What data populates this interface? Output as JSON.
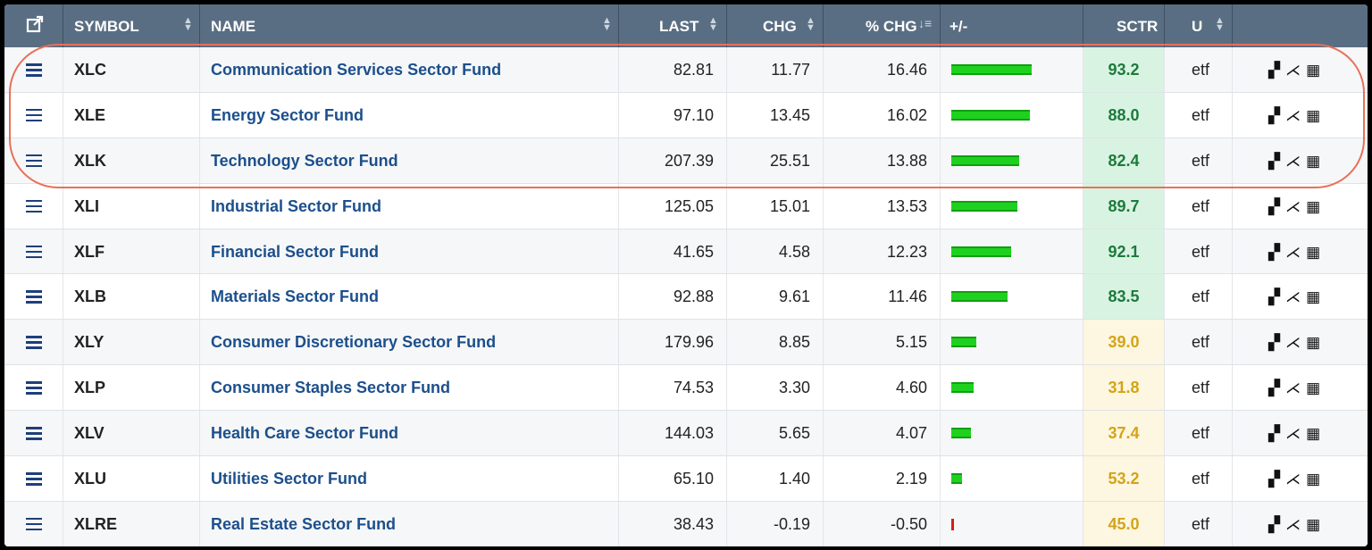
{
  "header": {
    "popout_icon": "external-link-icon",
    "columns": [
      "SYMBOL",
      "NAME",
      "LAST",
      "CHG",
      "% CHG",
      "+/-",
      "SCTR",
      "U"
    ]
  },
  "colors": {
    "sctr_high_bg": "#d9f3e2",
    "sctr_high_text": "#1d7a3c",
    "sctr_mid_bg": "#fdf6e0",
    "sctr_mid_text": "#d3a417",
    "bar_up": "#1fd11f",
    "bar_down": "#d81b1b",
    "highlight": "#e8705a"
  },
  "rows": [
    {
      "symbol": "XLC",
      "name": "Communication Services Sector Fund",
      "last": "82.81",
      "chg": "11.77",
      "pct": "16.46",
      "sctr": "93.2",
      "u": "etf",
      "bar": 16.46
    },
    {
      "symbol": "XLE",
      "name": "Energy Sector Fund",
      "last": "97.10",
      "chg": "13.45",
      "pct": "16.02",
      "sctr": "88.0",
      "u": "etf",
      "bar": 16.02
    },
    {
      "symbol": "XLK",
      "name": "Technology Sector Fund",
      "last": "207.39",
      "chg": "25.51",
      "pct": "13.88",
      "sctr": "82.4",
      "u": "etf",
      "bar": 13.88
    },
    {
      "symbol": "XLI",
      "name": "Industrial Sector Fund",
      "last": "125.05",
      "chg": "15.01",
      "pct": "13.53",
      "sctr": "89.7",
      "u": "etf",
      "bar": 13.53
    },
    {
      "symbol": "XLF",
      "name": "Financial Sector Fund",
      "last": "41.65",
      "chg": "4.58",
      "pct": "12.23",
      "sctr": "92.1",
      "u": "etf",
      "bar": 12.23
    },
    {
      "symbol": "XLB",
      "name": "Materials Sector Fund",
      "last": "92.88",
      "chg": "9.61",
      "pct": "11.46",
      "sctr": "83.5",
      "u": "etf",
      "bar": 11.46
    },
    {
      "symbol": "XLY",
      "name": "Consumer Discretionary Sector Fund",
      "last": "179.96",
      "chg": "8.85",
      "pct": "5.15",
      "sctr": "39.0",
      "u": "etf",
      "bar": 5.15
    },
    {
      "symbol": "XLP",
      "name": "Consumer Staples Sector Fund",
      "last": "74.53",
      "chg": "3.30",
      "pct": "4.60",
      "sctr": "31.8",
      "u": "etf",
      "bar": 4.6
    },
    {
      "symbol": "XLV",
      "name": "Health Care Sector Fund",
      "last": "144.03",
      "chg": "5.65",
      "pct": "4.07",
      "sctr": "37.4",
      "u": "etf",
      "bar": 4.07
    },
    {
      "symbol": "XLU",
      "name": "Utilities Sector Fund",
      "last": "65.10",
      "chg": "1.40",
      "pct": "2.19",
      "sctr": "53.2",
      "u": "etf",
      "bar": 2.19
    },
    {
      "symbol": "XLRE",
      "name": "Real Estate Sector Fund",
      "last": "38.43",
      "chg": "-0.19",
      "pct": "-0.50",
      "sctr": "45.0",
      "u": "etf",
      "bar": -0.5
    }
  ]
}
